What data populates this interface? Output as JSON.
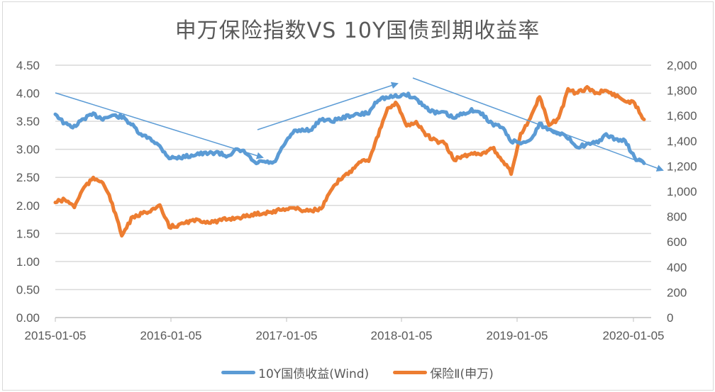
{
  "chart_data": {
    "type": "line",
    "title": "申万保险指数VS 10Y国债到期收益率",
    "xlabel": "",
    "ylabel": "",
    "y2label": "",
    "grid": true,
    "legend_position": "bottom",
    "x_tick_labels": [
      "2015-01-05",
      "2016-01-05",
      "2017-01-05",
      "2018-01-05",
      "2019-01-05",
      "2020-01-05"
    ],
    "y_left": {
      "min": 0,
      "max": 4.5,
      "ticks": [
        "0.00",
        "0.50",
        "1.00",
        "1.50",
        "2.00",
        "2.50",
        "3.00",
        "3.50",
        "4.00",
        "4.50"
      ]
    },
    "y_right": {
      "min": 0,
      "max": 2000,
      "ticks": [
        "0",
        "200",
        "400",
        "600",
        "800",
        "1,000",
        "1,200",
        "1,400",
        "1,600",
        "1,800",
        "2,000"
      ]
    },
    "x": [
      "2015-01",
      "2015-02",
      "2015-03",
      "2015-04",
      "2015-05",
      "2015-06",
      "2015-07",
      "2015-08",
      "2015-09",
      "2015-10",
      "2015-11",
      "2015-12",
      "2016-01",
      "2016-02",
      "2016-03",
      "2016-04",
      "2016-05",
      "2016-06",
      "2016-07",
      "2016-08",
      "2016-09",
      "2016-10",
      "2016-11",
      "2016-12",
      "2017-01",
      "2017-02",
      "2017-03",
      "2017-04",
      "2017-05",
      "2017-06",
      "2017-07",
      "2017-08",
      "2017-09",
      "2017-10",
      "2017-11",
      "2017-12",
      "2018-01",
      "2018-02",
      "2018-03",
      "2018-04",
      "2018-05",
      "2018-06",
      "2018-07",
      "2018-08",
      "2018-09",
      "2018-10",
      "2018-11",
      "2018-12",
      "2019-01",
      "2019-02",
      "2019-03",
      "2019-04",
      "2019-05",
      "2019-06",
      "2019-07",
      "2019-08",
      "2019-09",
      "2019-10",
      "2019-11",
      "2019-12",
      "2020-01",
      "2020-02",
      "2020-03"
    ],
    "series": [
      {
        "name": "10Y国债收益(Wind)",
        "axis": "left",
        "color": "#5b9bd5",
        "values": [
          3.64,
          3.45,
          3.4,
          3.55,
          3.62,
          3.55,
          3.6,
          3.58,
          3.45,
          3.25,
          3.2,
          3.05,
          2.85,
          2.85,
          2.88,
          2.92,
          2.92,
          2.95,
          2.88,
          2.98,
          2.95,
          2.75,
          2.78,
          2.75,
          3.05,
          3.3,
          3.35,
          3.35,
          3.55,
          3.5,
          3.55,
          3.6,
          3.62,
          3.65,
          3.9,
          3.92,
          3.95,
          3.98,
          3.9,
          3.75,
          3.65,
          3.65,
          3.55,
          3.65,
          3.7,
          3.62,
          3.45,
          3.4,
          3.15,
          3.12,
          3.15,
          3.45,
          3.35,
          3.3,
          3.2,
          3.05,
          3.08,
          3.12,
          3.25,
          3.18,
          3.15,
          2.85,
          2.75
        ]
      },
      {
        "name": "保险Ⅱ(申万)",
        "axis": "right",
        "color": "#ed7d31",
        "values": [
          915,
          935,
          880,
          1030,
          1100,
          1080,
          900,
          650,
          780,
          820,
          850,
          880,
          720,
          730,
          760,
          770,
          760,
          760,
          780,
          790,
          800,
          820,
          830,
          840,
          860,
          870,
          850,
          850,
          860,
          1000,
          1100,
          1150,
          1240,
          1250,
          1450,
          1650,
          1700,
          1520,
          1550,
          1450,
          1400,
          1380,
          1250,
          1280,
          1300,
          1300,
          1350,
          1250,
          1150,
          1450,
          1580,
          1750,
          1520,
          1580,
          1800,
          1780,
          1820,
          1780,
          1800,
          1760,
          1720,
          1700,
          1570
        ]
      }
    ],
    "annotations": [
      {
        "type": "arrow",
        "label": "downtrend 2015-2016",
        "from": [
          78,
          131
        ],
        "to": [
          370,
          222
        ]
      },
      {
        "type": "arrow",
        "label": "uptrend 2017",
        "from": [
          363,
          183
        ],
        "to": [
          560,
          118
        ]
      },
      {
        "type": "arrow",
        "label": "downtrend 2018-2020",
        "from": [
          582,
          110
        ],
        "to": [
          934,
          240
        ]
      }
    ]
  },
  "legend": {
    "items": [
      {
        "label": "10Y国债收益(Wind)",
        "color": "#5b9bd5"
      },
      {
        "label": "保险Ⅱ(申万)",
        "color": "#ed7d31"
      }
    ]
  }
}
